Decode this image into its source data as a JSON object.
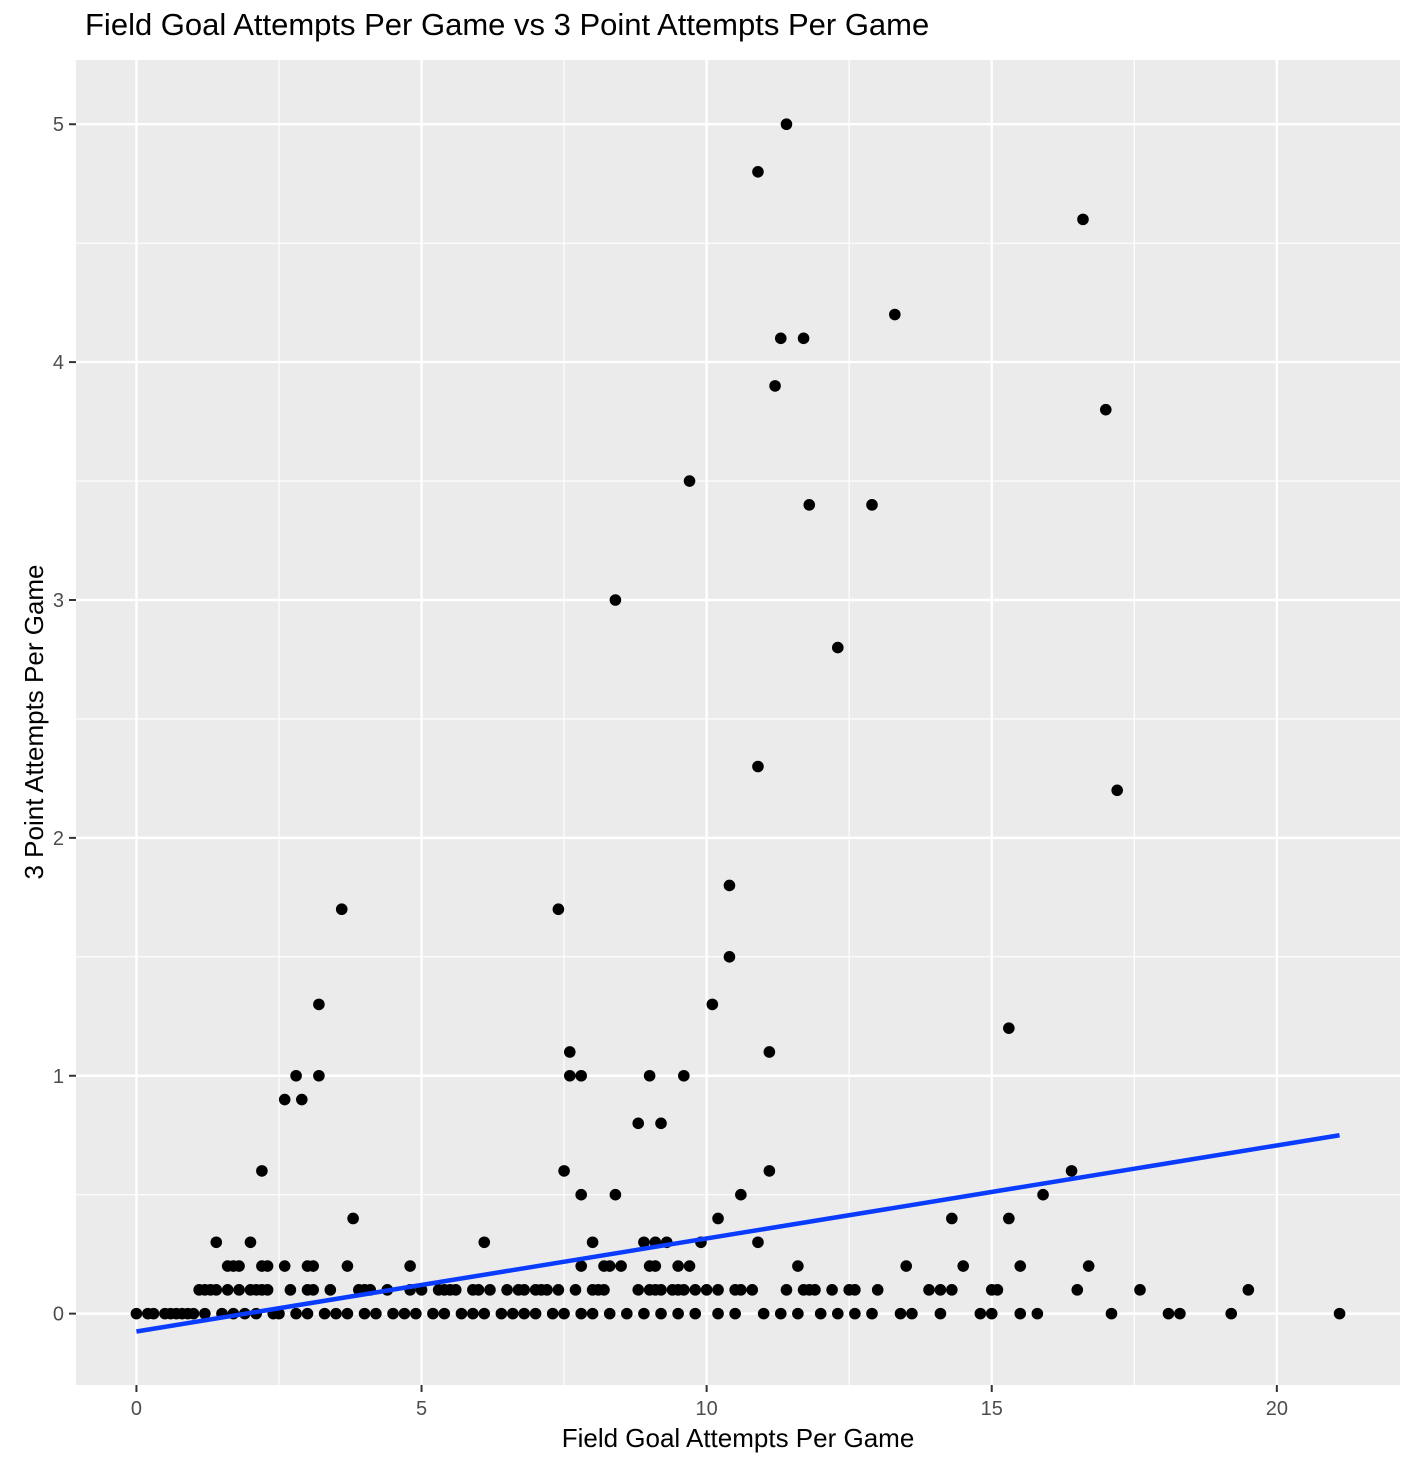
{
  "chart_data": {
    "type": "scatter",
    "title": "Field Goal Attempts Per Game vs 3 Point Attempts Per Game",
    "xlabel": "Field Goal Attempts Per Game",
    "ylabel": "3 Point Attempts Per Game",
    "xlim": [
      -1.06,
      22.16
    ],
    "ylim": [
      -0.3,
      5.27
    ],
    "x_ticks": [
      0,
      5,
      10,
      15,
      20
    ],
    "x_tick_labels": [
      "0",
      "5",
      "10",
      "15",
      "20"
    ],
    "y_ticks": [
      0,
      1,
      2,
      3,
      4,
      5
    ],
    "y_tick_labels": [
      "0",
      "1",
      "2",
      "3",
      "4",
      "5"
    ],
    "grid": true,
    "colors": {
      "panel": "#ebebeb",
      "grid": "#ffffff",
      "points": "#000000",
      "fit_line": "#0a3cff"
    },
    "fit_line": {
      "x": [
        0,
        21.1
      ],
      "y": [
        -0.075,
        0.75
      ]
    },
    "series": [
      {
        "points": [
          [
            10.9,
            4.8
          ],
          [
            11.4,
            5.0
          ],
          [
            16.6,
            4.6
          ],
          [
            13.3,
            4.2
          ],
          [
            11.3,
            4.1
          ],
          [
            11.7,
            4.1
          ],
          [
            11.2,
            3.9
          ],
          [
            17.0,
            3.8
          ],
          [
            9.7,
            3.5
          ],
          [
            11.8,
            3.4
          ],
          [
            12.9,
            3.4
          ],
          [
            8.4,
            3.0
          ],
          [
            12.3,
            2.8
          ],
          [
            10.9,
            2.3
          ],
          [
            17.2,
            2.2
          ],
          [
            10.4,
            1.8
          ],
          [
            3.6,
            1.7
          ],
          [
            7.4,
            1.7
          ],
          [
            10.4,
            1.5
          ],
          [
            3.2,
            1.3
          ],
          [
            10.1,
            1.3
          ],
          [
            15.3,
            1.2
          ],
          [
            7.6,
            1.1
          ],
          [
            11.1,
            1.1
          ],
          [
            2.8,
            1.0
          ],
          [
            3.2,
            1.0
          ],
          [
            7.6,
            1.0
          ],
          [
            7.8,
            1.0
          ],
          [
            9.0,
            1.0
          ],
          [
            9.6,
            1.0
          ],
          [
            2.6,
            0.9
          ],
          [
            2.9,
            0.9
          ],
          [
            8.8,
            0.8
          ],
          [
            9.2,
            0.8
          ],
          [
            2.2,
            0.6
          ],
          [
            7.5,
            0.6
          ],
          [
            11.1,
            0.6
          ],
          [
            16.4,
            0.6
          ],
          [
            7.8,
            0.5
          ],
          [
            8.4,
            0.5
          ],
          [
            10.6,
            0.5
          ],
          [
            15.9,
            0.5
          ],
          [
            3.8,
            0.4
          ],
          [
            10.2,
            0.4
          ],
          [
            14.3,
            0.4
          ],
          [
            15.3,
            0.4
          ],
          [
            1.4,
            0.3
          ],
          [
            2.0,
            0.3
          ],
          [
            6.1,
            0.3
          ],
          [
            8.0,
            0.3
          ],
          [
            8.9,
            0.3
          ],
          [
            9.1,
            0.3
          ],
          [
            9.3,
            0.3
          ],
          [
            9.9,
            0.3
          ],
          [
            10.9,
            0.3
          ],
          [
            1.6,
            0.2
          ],
          [
            1.7,
            0.2
          ],
          [
            1.8,
            0.2
          ],
          [
            2.2,
            0.2
          ],
          [
            2.3,
            0.2
          ],
          [
            2.6,
            0.2
          ],
          [
            3.0,
            0.2
          ],
          [
            3.1,
            0.2
          ],
          [
            3.7,
            0.2
          ],
          [
            4.8,
            0.2
          ],
          [
            7.8,
            0.2
          ],
          [
            8.2,
            0.2
          ],
          [
            8.3,
            0.2
          ],
          [
            8.5,
            0.2
          ],
          [
            9.0,
            0.2
          ],
          [
            9.1,
            0.2
          ],
          [
            9.5,
            0.2
          ],
          [
            9.7,
            0.2
          ],
          [
            11.6,
            0.2
          ],
          [
            13.5,
            0.2
          ],
          [
            14.5,
            0.2
          ],
          [
            15.5,
            0.2
          ],
          [
            16.7,
            0.2
          ],
          [
            1.1,
            0.1
          ],
          [
            1.2,
            0.1
          ],
          [
            1.3,
            0.1
          ],
          [
            1.4,
            0.1
          ],
          [
            1.6,
            0.1
          ],
          [
            1.8,
            0.1
          ],
          [
            2.0,
            0.1
          ],
          [
            2.1,
            0.1
          ],
          [
            2.2,
            0.1
          ],
          [
            2.3,
            0.1
          ],
          [
            2.7,
            0.1
          ],
          [
            3.0,
            0.1
          ],
          [
            3.1,
            0.1
          ],
          [
            3.4,
            0.1
          ],
          [
            3.9,
            0.1
          ],
          [
            4.0,
            0.1
          ],
          [
            4.1,
            0.1
          ],
          [
            4.4,
            0.1
          ],
          [
            4.8,
            0.1
          ],
          [
            5.0,
            0.1
          ],
          [
            5.3,
            0.1
          ],
          [
            5.4,
            0.1
          ],
          [
            5.5,
            0.1
          ],
          [
            5.6,
            0.1
          ],
          [
            5.9,
            0.1
          ],
          [
            6.0,
            0.1
          ],
          [
            6.2,
            0.1
          ],
          [
            6.5,
            0.1
          ],
          [
            6.7,
            0.1
          ],
          [
            6.8,
            0.1
          ],
          [
            7.0,
            0.1
          ],
          [
            7.1,
            0.1
          ],
          [
            7.2,
            0.1
          ],
          [
            7.4,
            0.1
          ],
          [
            7.7,
            0.1
          ],
          [
            8.0,
            0.1
          ],
          [
            8.1,
            0.1
          ],
          [
            8.2,
            0.1
          ],
          [
            8.8,
            0.1
          ],
          [
            9.0,
            0.1
          ],
          [
            9.1,
            0.1
          ],
          [
            9.2,
            0.1
          ],
          [
            9.4,
            0.1
          ],
          [
            9.5,
            0.1
          ],
          [
            9.6,
            0.1
          ],
          [
            9.8,
            0.1
          ],
          [
            10.0,
            0.1
          ],
          [
            10.2,
            0.1
          ],
          [
            10.5,
            0.1
          ],
          [
            10.6,
            0.1
          ],
          [
            10.8,
            0.1
          ],
          [
            11.4,
            0.1
          ],
          [
            11.7,
            0.1
          ],
          [
            11.8,
            0.1
          ],
          [
            11.9,
            0.1
          ],
          [
            12.2,
            0.1
          ],
          [
            12.5,
            0.1
          ],
          [
            12.6,
            0.1
          ],
          [
            13.0,
            0.1
          ],
          [
            13.9,
            0.1
          ],
          [
            14.1,
            0.1
          ],
          [
            14.3,
            0.1
          ],
          [
            15.0,
            0.1
          ],
          [
            15.1,
            0.1
          ],
          [
            16.5,
            0.1
          ],
          [
            17.6,
            0.1
          ],
          [
            19.5,
            0.1
          ],
          [
            0.0,
            0.0
          ],
          [
            0.2,
            0.0
          ],
          [
            0.3,
            0.0
          ],
          [
            0.5,
            0.0
          ],
          [
            0.6,
            0.0
          ],
          [
            0.7,
            0.0
          ],
          [
            0.8,
            0.0
          ],
          [
            0.9,
            0.0
          ],
          [
            1.0,
            0.0
          ],
          [
            1.2,
            0.0
          ],
          [
            1.5,
            0.0
          ],
          [
            1.7,
            0.0
          ],
          [
            1.9,
            0.0
          ],
          [
            2.1,
            0.0
          ],
          [
            2.4,
            0.0
          ],
          [
            2.5,
            0.0
          ],
          [
            2.8,
            0.0
          ],
          [
            3.0,
            0.0
          ],
          [
            3.3,
            0.0
          ],
          [
            3.5,
            0.0
          ],
          [
            3.7,
            0.0
          ],
          [
            4.0,
            0.0
          ],
          [
            4.2,
            0.0
          ],
          [
            4.5,
            0.0
          ],
          [
            4.7,
            0.0
          ],
          [
            4.9,
            0.0
          ],
          [
            5.2,
            0.0
          ],
          [
            5.4,
            0.0
          ],
          [
            5.7,
            0.0
          ],
          [
            5.9,
            0.0
          ],
          [
            6.1,
            0.0
          ],
          [
            6.4,
            0.0
          ],
          [
            6.6,
            0.0
          ],
          [
            6.8,
            0.0
          ],
          [
            7.0,
            0.0
          ],
          [
            7.3,
            0.0
          ],
          [
            7.5,
            0.0
          ],
          [
            7.8,
            0.0
          ],
          [
            8.0,
            0.0
          ],
          [
            8.3,
            0.0
          ],
          [
            8.6,
            0.0
          ],
          [
            8.9,
            0.0
          ],
          [
            9.2,
            0.0
          ],
          [
            9.5,
            0.0
          ],
          [
            9.8,
            0.0
          ],
          [
            10.2,
            0.0
          ],
          [
            10.5,
            0.0
          ],
          [
            11.0,
            0.0
          ],
          [
            11.3,
            0.0
          ],
          [
            11.6,
            0.0
          ],
          [
            12.0,
            0.0
          ],
          [
            12.3,
            0.0
          ],
          [
            12.6,
            0.0
          ],
          [
            12.9,
            0.0
          ],
          [
            13.4,
            0.0
          ],
          [
            13.6,
            0.0
          ],
          [
            14.1,
            0.0
          ],
          [
            14.8,
            0.0
          ],
          [
            15.0,
            0.0
          ],
          [
            15.5,
            0.0
          ],
          [
            15.8,
            0.0
          ],
          [
            17.1,
            0.0
          ],
          [
            18.1,
            0.0
          ],
          [
            18.3,
            0.0
          ],
          [
            19.2,
            0.0
          ],
          [
            21.1,
            0.0
          ]
        ]
      }
    ]
  }
}
